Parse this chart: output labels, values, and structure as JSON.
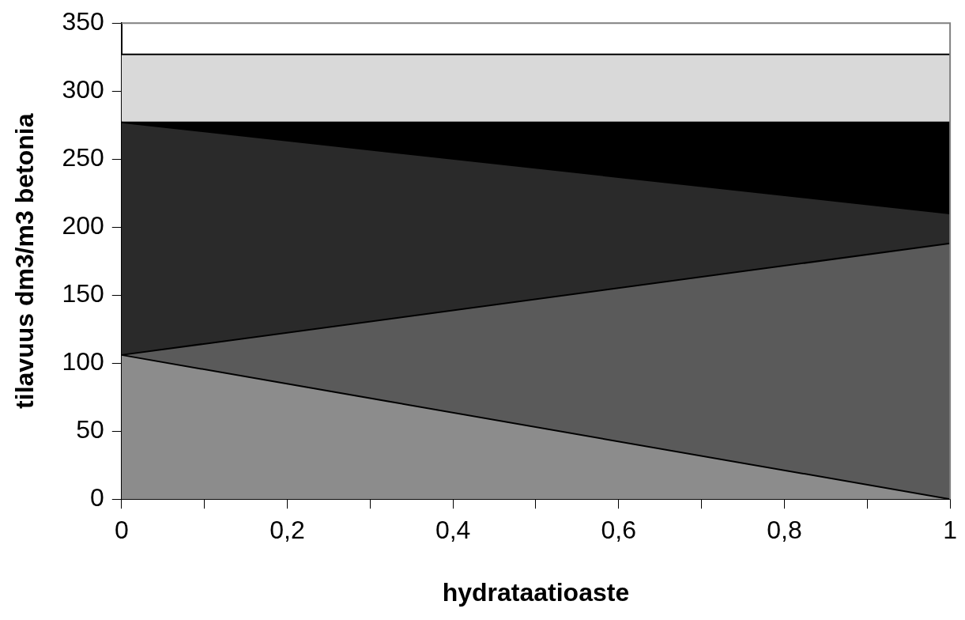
{
  "chart_data": {
    "type": "area",
    "stacked": true,
    "xlabel": "hydrataatioaste",
    "ylabel": "tilavuus dm3/m3 betonia",
    "x": [
      0,
      1
    ],
    "series": [
      {
        "color": "#8c8c8c",
        "values": [
          106,
          0
        ]
      },
      {
        "color": "#5a5a5a",
        "values": [
          0,
          188
        ]
      },
      {
        "color": "#2a2a2a",
        "values": [
          171,
          22
        ]
      },
      {
        "color": "#000000",
        "values": [
          0,
          67
        ]
      },
      {
        "color": "#d9d9d9",
        "values": [
          50,
          50
        ]
      }
    ],
    "xlim": [
      0,
      1
    ],
    "xticks": [
      0,
      {
        "value": 0.1,
        "label": null
      },
      {
        "value": 0.2,
        "label": "0,2"
      },
      {
        "value": 0.3,
        "label": null
      },
      {
        "value": 0.4,
        "label": "0,4"
      },
      {
        "value": 0.5,
        "label": null
      },
      {
        "value": 0.6,
        "label": "0,6"
      },
      {
        "value": 0.7,
        "label": null
      },
      {
        "value": 0.8,
        "label": "0,8"
      },
      {
        "value": 0.9,
        "label": null
      },
      1
    ],
    "ylim": [
      0,
      350
    ],
    "yticks": [
      0,
      50,
      100,
      150,
      200,
      250,
      300,
      350
    ],
    "grid": false,
    "legend": false
  }
}
